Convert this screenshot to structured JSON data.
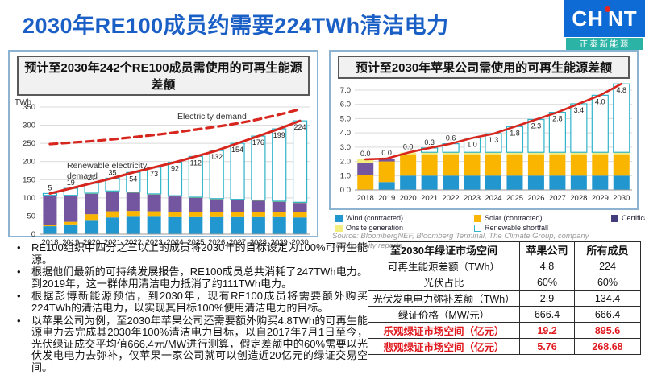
{
  "page": {
    "title": "2030年RE100成员约需要224TWh清洁电力"
  },
  "logo": {
    "left": "CH",
    "right": "NT",
    "subtitle": "正泰新能源",
    "blue": "#0e6ad4",
    "teal": "#2bb3a5"
  },
  "panels": {
    "left_header": "预计至2030年242个RE100成员需使用的可再生能源差额",
    "right_header": "预计至2030年苹果公司需使用的可再生能源差额"
  },
  "chart_data": [
    {
      "id": "re100",
      "type": "bar",
      "subtype": "stacked-bar-with-lines",
      "title": "预计至2030年242个RE100成员需使用的可再生能源差额",
      "ylabel": "TWh",
      "categories": [
        2018,
        2019,
        2020,
        2021,
        2022,
        2023,
        2024,
        2025,
        2026,
        2027,
        2028,
        2029,
        2030
      ],
      "yticks": [
        0,
        50,
        100,
        150,
        200,
        250,
        300,
        350
      ],
      "ylim": [
        0,
        360
      ],
      "grid": true,
      "series": [
        {
          "name": "Wind (contracted)",
          "color": "#2196cf",
          "values": [
            22,
            27,
            37,
            46,
            48,
            48,
            47,
            47,
            47,
            47,
            47,
            47,
            46
          ]
        },
        {
          "name": "Solar (contracted)",
          "color": "#f9b500",
          "values": [
            3,
            7,
            18,
            17,
            16,
            15,
            15,
            15,
            15,
            15,
            15,
            15,
            15
          ]
        },
        {
          "name": "Certificate purchases",
          "color": "#7456a0",
          "values": [
            80,
            71,
            56,
            54,
            50,
            46,
            42,
            38,
            34,
            32,
            30,
            27,
            25
          ]
        },
        {
          "name": "Onsite generation",
          "color": "#8ab648",
          "values": [
            2,
            2,
            2,
            2,
            2,
            2,
            2,
            2,
            2,
            2,
            2,
            2,
            2
          ]
        }
      ],
      "shortfall": {
        "name": "Renewable shortfall",
        "fill": "#ffffff",
        "stroke": "#2fb4c9",
        "values": [
          5,
          19,
          27,
          35,
          54,
          73,
          92,
          112,
          132,
          154,
          176,
          199,
          224
        ],
        "labels": [
          "5",
          "19",
          "27",
          "35",
          "54",
          "73",
          "92",
          "112",
          "132",
          "154",
          "176",
          "199",
          "224"
        ]
      },
      "lines": [
        {
          "name": "Renewable electricity demand",
          "style": "solid",
          "color": "#d7261e",
          "values": [
            112,
            126,
            140,
            154,
            170,
            184,
            198,
            214,
            230,
            250,
            270,
            290,
            312
          ]
        },
        {
          "name": "Electricity demand",
          "style": "dashed",
          "color": "#d7261e",
          "values": [
            248,
            252,
            256,
            261,
            267,
            273,
            280,
            288,
            296,
            305,
            316,
            329,
            344
          ]
        }
      ],
      "annotations": [
        {
          "text": "Electricity demand"
        },
        {
          "text": "Renewable electricity",
          "text2": "demand"
        }
      ]
    },
    {
      "id": "apple",
      "type": "bar",
      "subtype": "stacked-bar-with-lines",
      "title": "预计至2030年苹果公司需使用的可再生能源差额",
      "ylabel": "",
      "categories": [
        2018,
        2019,
        2020,
        2021,
        2022,
        2023,
        2024,
        2025,
        2026,
        2027,
        2028,
        2029,
        2030
      ],
      "yticks": [
        0,
        1,
        2,
        3,
        4,
        5,
        6,
        7
      ],
      "ytick_labels": [
        "0.0",
        "1.0",
        "2.0",
        "3.0",
        "4.0",
        "5.0",
        "6.0",
        "7.0"
      ],
      "ylim": [
        0,
        7.6
      ],
      "grid": true,
      "series": [
        {
          "name": "Wind (contracted)",
          "color": "#2196cf",
          "values": [
            0,
            0.55,
            1.0,
            1.0,
            1.0,
            1.0,
            1.0,
            1.0,
            1.0,
            1.0,
            1.0,
            1.0,
            1.0
          ]
        },
        {
          "name": "Solar (contracted)",
          "color": "#f9b500",
          "values": [
            1.05,
            1.45,
            1.5,
            1.5,
            1.5,
            1.5,
            1.5,
            1.5,
            1.5,
            1.5,
            1.5,
            1.5,
            1.5
          ]
        },
        {
          "name": "Certificate purchases",
          "color": "#7456a0",
          "values": [
            0.85,
            0.2,
            0,
            0,
            0,
            0,
            0,
            0,
            0,
            0,
            0,
            0,
            0
          ]
        },
        {
          "name": "Onsite generation",
          "color": "#f3ee7d",
          "values": [
            0.25,
            0,
            0.12,
            0.14,
            0.14,
            0.14,
            0.14,
            0.14,
            0.14,
            0.14,
            0.14,
            0.14,
            0.14
          ]
        }
      ],
      "shortfall": {
        "name": "Renewable shortfall",
        "fill": "#ffffff",
        "stroke": "#2fb4c9",
        "values": [
          0,
          0,
          0,
          0.3,
          0.6,
          1.0,
          1.3,
          1.8,
          2.3,
          2.8,
          3.4,
          4.0,
          4.8
        ],
        "labels": [
          "0.0",
          "0.0",
          "0.0",
          "0.3",
          "0.6",
          "1.0",
          "1.3",
          "1.8",
          "2.3",
          "2.8",
          "3.4",
          "4.0",
          "4.8"
        ]
      },
      "lines": [
        {
          "name": "Renewable electricity demand",
          "style": "solid",
          "color": "#d7261e",
          "values": [
            2.15,
            2.2,
            2.62,
            2.94,
            3.24,
            3.64,
            3.94,
            4.44,
            4.94,
            5.44,
            6.04,
            6.64,
            7.44
          ]
        }
      ],
      "annotations": []
    }
  ],
  "legend": {
    "items": [
      {
        "label": "Wind (contracted)",
        "color": "#2196cf",
        "outline": false
      },
      {
        "label": "Solar (contracted)",
        "color": "#f9b500",
        "outline": false
      },
      {
        "label": "Certificate purchases",
        "color": "#433d7d",
        "outline": false
      },
      {
        "label": "Onsite generation",
        "color": "#f3ee7d",
        "outline": false
      },
      {
        "label": "Renewable shortfall",
        "color": "#ffffff",
        "outline": true,
        "outline_color": "#2fb4c9"
      }
    ]
  },
  "source": "Source: BloombergNEF, Bloomberg Terminal, The Climate Group, company sustainability reports",
  "bullets": [
    "RE100组织中四分之三以上的成员将2030年的目标设定为100%可再生能源。",
    "根据他们最新的可持续发展报告，RE100成员总共消耗了247TWh电力。到2019年，这一群体用清洁电力抵消了约111TWh电力。",
    "根据彭博新能源预估，到2030年，现有RE100成员将需要额外购买224TWh的清洁电力，以实现其目标100%使用清洁电力的目标。",
    "以苹果公司为例，至2030年苹果公司还需要额外购买4.8TWh的可再生能源电力去完成其2030年100%清洁电力目标，以自2017年7月1日至今，光伏绿证成交平均值666.4元/MW进行测算，假定差额中的60%需要以光伏发电电力去弥补，仅苹果一家公司就可以创造近20亿元的绿证交易空间。"
  ],
  "table": {
    "header": [
      "至2030年绿证市场空间",
      "苹果公司",
      "所有成员"
    ],
    "rows": [
      {
        "label": "可再生能源差额（TWh）",
        "apple": "4.8",
        "all": "224",
        "highlight": false
      },
      {
        "label": "光伏占比",
        "apple": "60%",
        "all": "60%",
        "highlight": false
      },
      {
        "label": "光伏发电电力弥补差额（TWh）",
        "apple": "2.9",
        "all": "134.4",
        "highlight": false
      },
      {
        "label": "绿证价格（MW/元）",
        "apple": "666.4",
        "all": "666.4",
        "highlight": false
      },
      {
        "label": "乐观绿证市场空间（亿元）",
        "apple": "19.2",
        "all": "895.6",
        "highlight": true
      },
      {
        "label": "悲观绿证市场空间（亿元）",
        "apple": "5.76",
        "all": "268.68",
        "highlight": true
      }
    ]
  }
}
